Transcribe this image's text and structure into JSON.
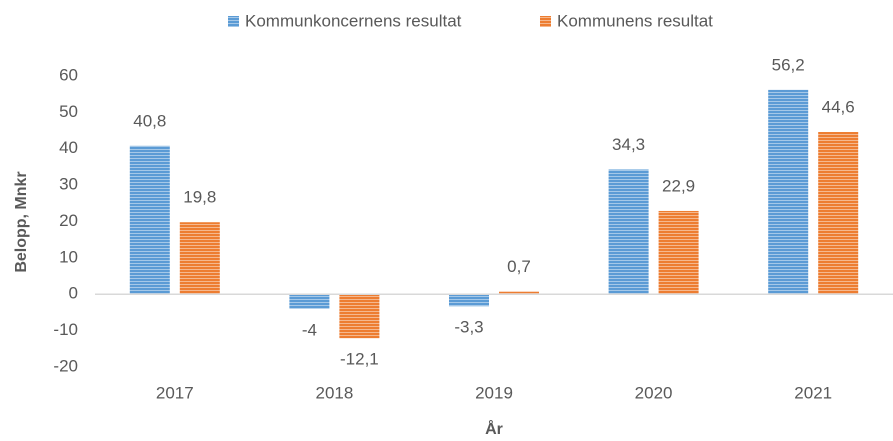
{
  "chart_data": {
    "type": "bar",
    "categories": [
      "2017",
      "2018",
      "2019",
      "2020",
      "2021"
    ],
    "series": [
      {
        "name": "Kommunkoncernens resultat",
        "color": "#5b9bd5",
        "values": [
          40.8,
          -4,
          -3.3,
          34.3,
          56.2
        ],
        "value_labels": [
          "40,8",
          "-4",
          "-3,3",
          "34,3",
          "56,2"
        ]
      },
      {
        "name": "Kommunens resultat",
        "color": "#ed7d31",
        "values": [
          19.8,
          -12.1,
          0.7,
          22.9,
          44.6
        ],
        "value_labels": [
          "19,8",
          "-12,1",
          "0,7",
          "22,9",
          "44,6"
        ]
      }
    ],
    "ylim": [
      -20,
      60
    ],
    "yticks": [
      -20,
      -10,
      0,
      10,
      20,
      30,
      40,
      50,
      60
    ],
    "ylabel": "Belopp, Mnkr",
    "xlabel": "År",
    "grid": false,
    "legend": "top"
  }
}
